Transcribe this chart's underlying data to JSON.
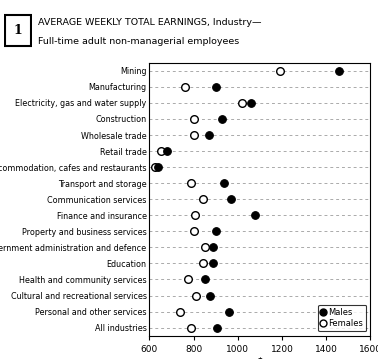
{
  "title_line1": "AVERAGE WEEKLY TOTAL EARNINGS, Industry—",
  "title_line2": "Full-time adult non-managerial employees",
  "figure_number": "1",
  "categories": [
    "Mining",
    "Manufacturing",
    "Electricity, gas and water supply",
    "Construction",
    "Wholesale trade",
    "Retail trade",
    "Accommodation, cafes and restaurants",
    "Transport and storage",
    "Communication services",
    "Finance and insurance",
    "Property and business services",
    "Government administration and defence",
    "Education",
    "Health and community services",
    "Cultural and recreational services",
    "Personal and other services",
    "All industries"
  ],
  "males": [
    1460,
    900,
    1060,
    930,
    870,
    680,
    640,
    940,
    970,
    1080,
    900,
    890,
    890,
    850,
    875,
    960,
    905
  ],
  "females": [
    1190,
    760,
    1020,
    800,
    800,
    655,
    625,
    790,
    845,
    805,
    800,
    850,
    845,
    775,
    810,
    740,
    790
  ],
  "xlim": [
    600,
    1600
  ],
  "xticks": [
    600,
    800,
    1000,
    1200,
    1400,
    1600
  ],
  "xlabel": "$",
  "line_color": "#aaaaaa",
  "background_color": "#ffffff"
}
